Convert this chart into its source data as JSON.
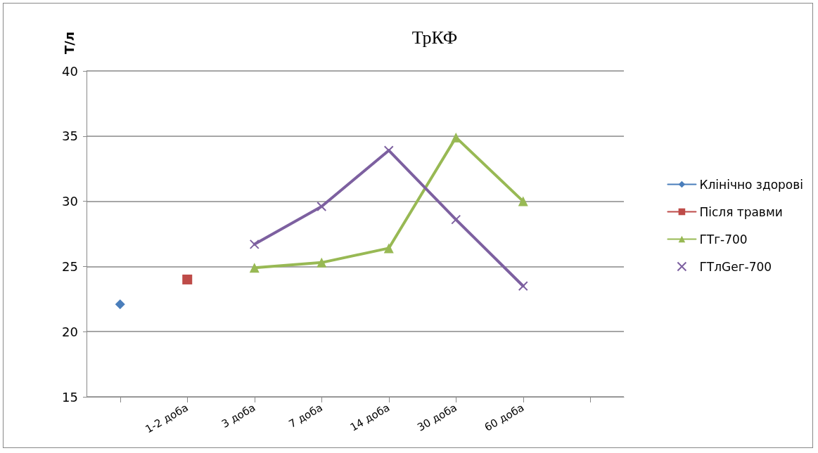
{
  "chart_data": {
    "type": "line",
    "title": "ТрКФ",
    "ylabel": "Т/л",
    "categories": [
      null,
      "1-2 доба",
      "3 доба",
      "7 доба",
      "14 доба",
      "30 доба",
      "60 доба",
      null
    ],
    "series": [
      {
        "name": "Клінічно здорові",
        "color": "#4a7ebb",
        "marker": "diamond",
        "values": [
          22.1,
          null,
          null,
          null,
          null,
          null,
          null,
          null
        ]
      },
      {
        "name": "Після травми",
        "color": "#be4b48",
        "marker": "square",
        "values": [
          null,
          24.0,
          null,
          null,
          null,
          null,
          null,
          null
        ]
      },
      {
        "name": "ГТг-700",
        "color": "#98b954",
        "marker": "triangle",
        "values": [
          null,
          null,
          24.9,
          25.3,
          26.4,
          34.9,
          30.0,
          null
        ]
      },
      {
        "name": "ГТлGeг-700",
        "color": "#7d60a0",
        "marker": "cross",
        "values": [
          null,
          null,
          26.7,
          29.6,
          33.9,
          28.6,
          23.5,
          null
        ]
      }
    ],
    "ylim": [
      15,
      40
    ],
    "yticks": [
      15,
      20,
      25,
      30,
      35,
      40
    ],
    "grid": "y",
    "legend": "right",
    "line_style": "solid"
  }
}
